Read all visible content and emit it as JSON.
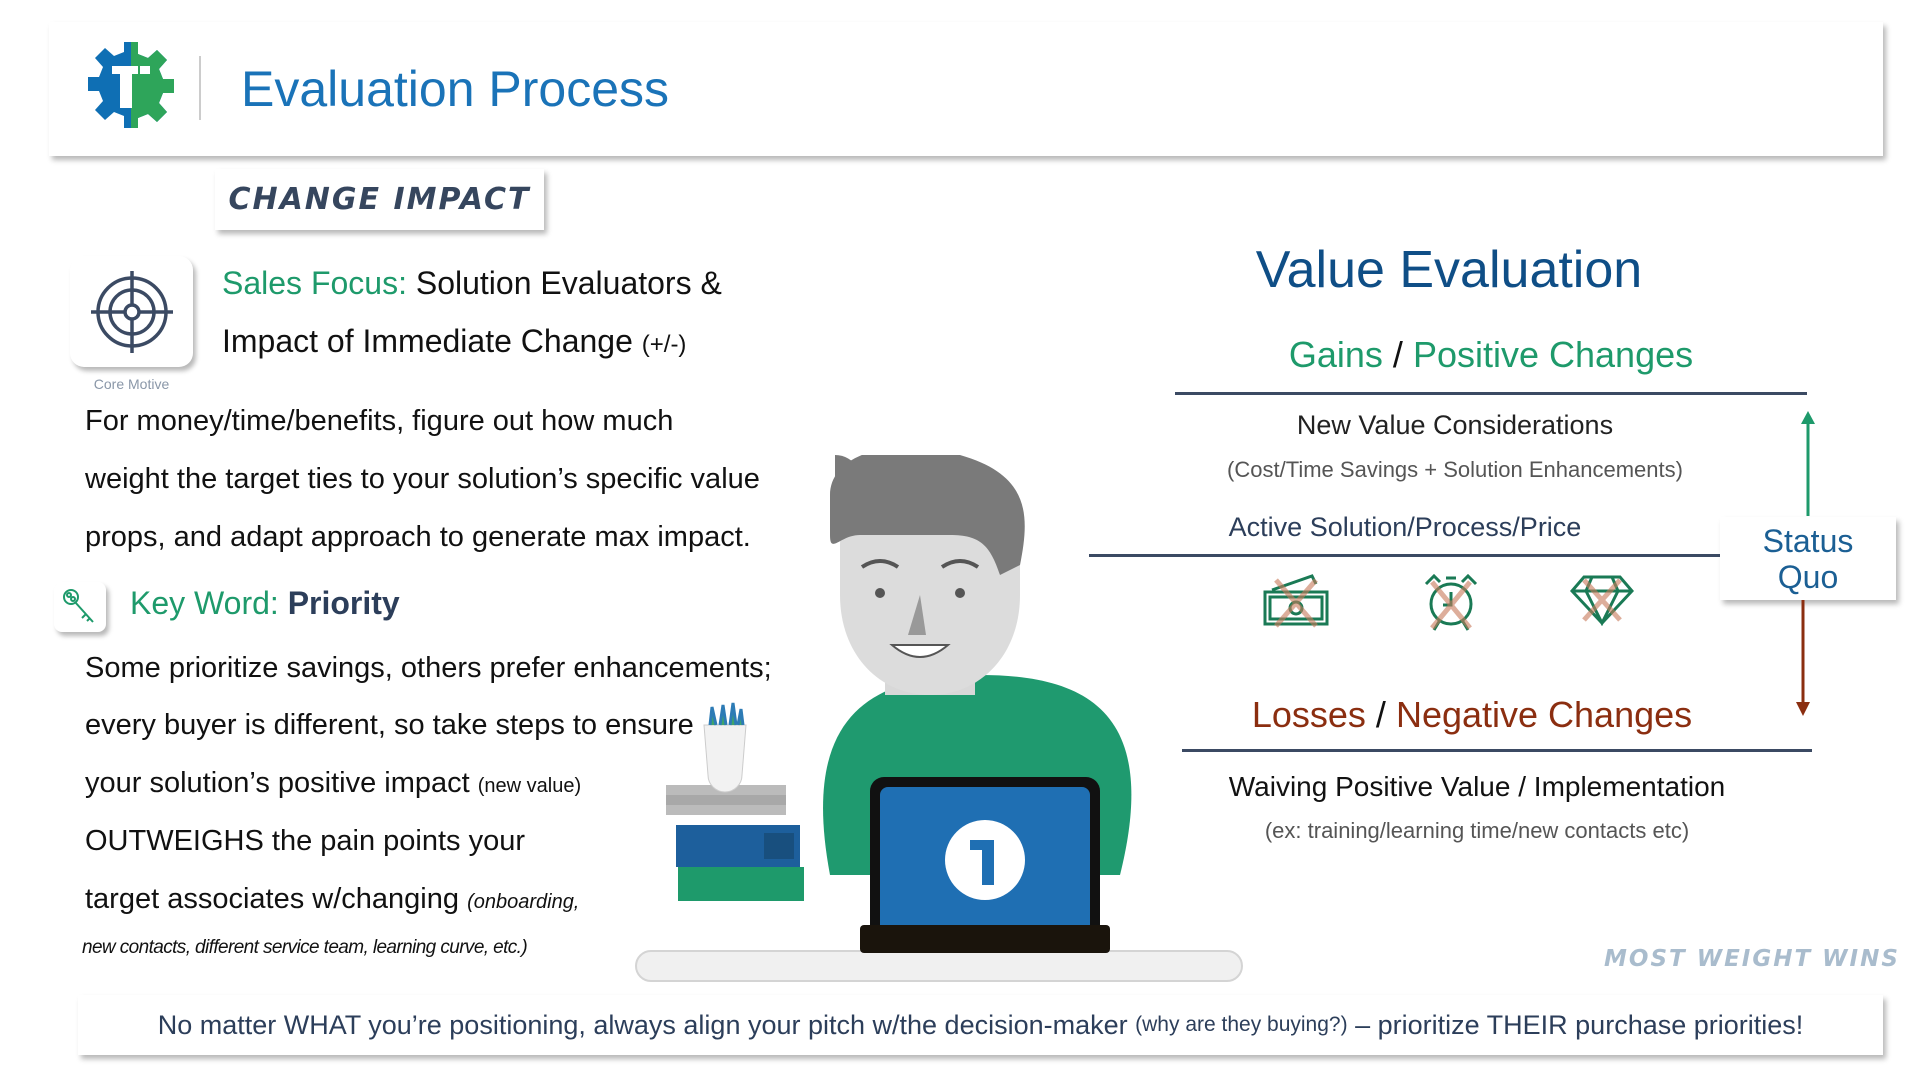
{
  "header": {
    "title": "Evaluation Process",
    "logo_text": "1S"
  },
  "section_label": "CHANGE IMPACT",
  "core_motive": {
    "icon": "target-icon",
    "caption": "Core Motive"
  },
  "sales_focus": {
    "label": "Sales Focus:",
    "line1": "Solution Evaluators &",
    "line2": "Impact of Immediate Change",
    "line2_suffix": "(+/-)"
  },
  "paragraph1": [
    "For money/time/benefits, figure out how much",
    "weight the target ties to your solution’s specific value",
    "props, and adapt approach to generate max impact."
  ],
  "key_word": {
    "icon": "key-icon",
    "label": "Key Word:",
    "value": "Priority"
  },
  "paragraph2": {
    "line1": "Some prioritize savings, others prefer enhancements;",
    "line2": "every buyer is different, so take steps to ensure",
    "line3": "your solution’s positive impact",
    "line3_note": "(new value)",
    "line4": "OUTWEIGHS the pain points your",
    "line5": "target associates w/changing",
    "line5_note": "(onboarding,",
    "line6": "new contacts, different service team, learning curve, etc.)"
  },
  "value_evaluation": {
    "title": "Value Evaluation",
    "gains": {
      "a": "Gains",
      "sep": "/",
      "b": "Positive Changes",
      "color": "#1e9a6b"
    },
    "new_value": "New Value Considerations",
    "new_value_note": "(Cost/Time Savings + Solution Enhancements)",
    "active": "Active Solution/Process/Price",
    "icons": [
      "money-crossed-icon",
      "alarm-clock-crossed-icon",
      "diamond-crossed-icon"
    ],
    "status_quo": [
      "Status",
      "Quo"
    ],
    "losses": {
      "a": "Losses",
      "sep": "/",
      "b": "Negative Changes",
      "color": "#8b2e10"
    },
    "waiving": "Waiving Positive Value / Implementation",
    "waiving_note": "(ex: training/learning time/new contacts etc)"
  },
  "most_weight_wins": "MOST WEIGHT WINS",
  "footer": {
    "a": "No matter WHAT you’re positioning, always align your pitch w/the decision-maker",
    "note": "(why are they buying?)",
    "b": "– prioritize THEIR purchase priorities!"
  }
}
